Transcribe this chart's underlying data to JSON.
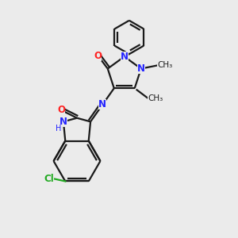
{
  "bg_color": "#ebebeb",
  "bond_color": "#1a1a1a",
  "N_color": "#2222ff",
  "O_color": "#ff2222",
  "Cl_color": "#22aa22",
  "lw": 1.6,
  "figsize": [
    3.0,
    3.0
  ],
  "dpi": 100,
  "xlim": [
    0,
    10
  ],
  "ylim": [
    0,
    10
  ]
}
